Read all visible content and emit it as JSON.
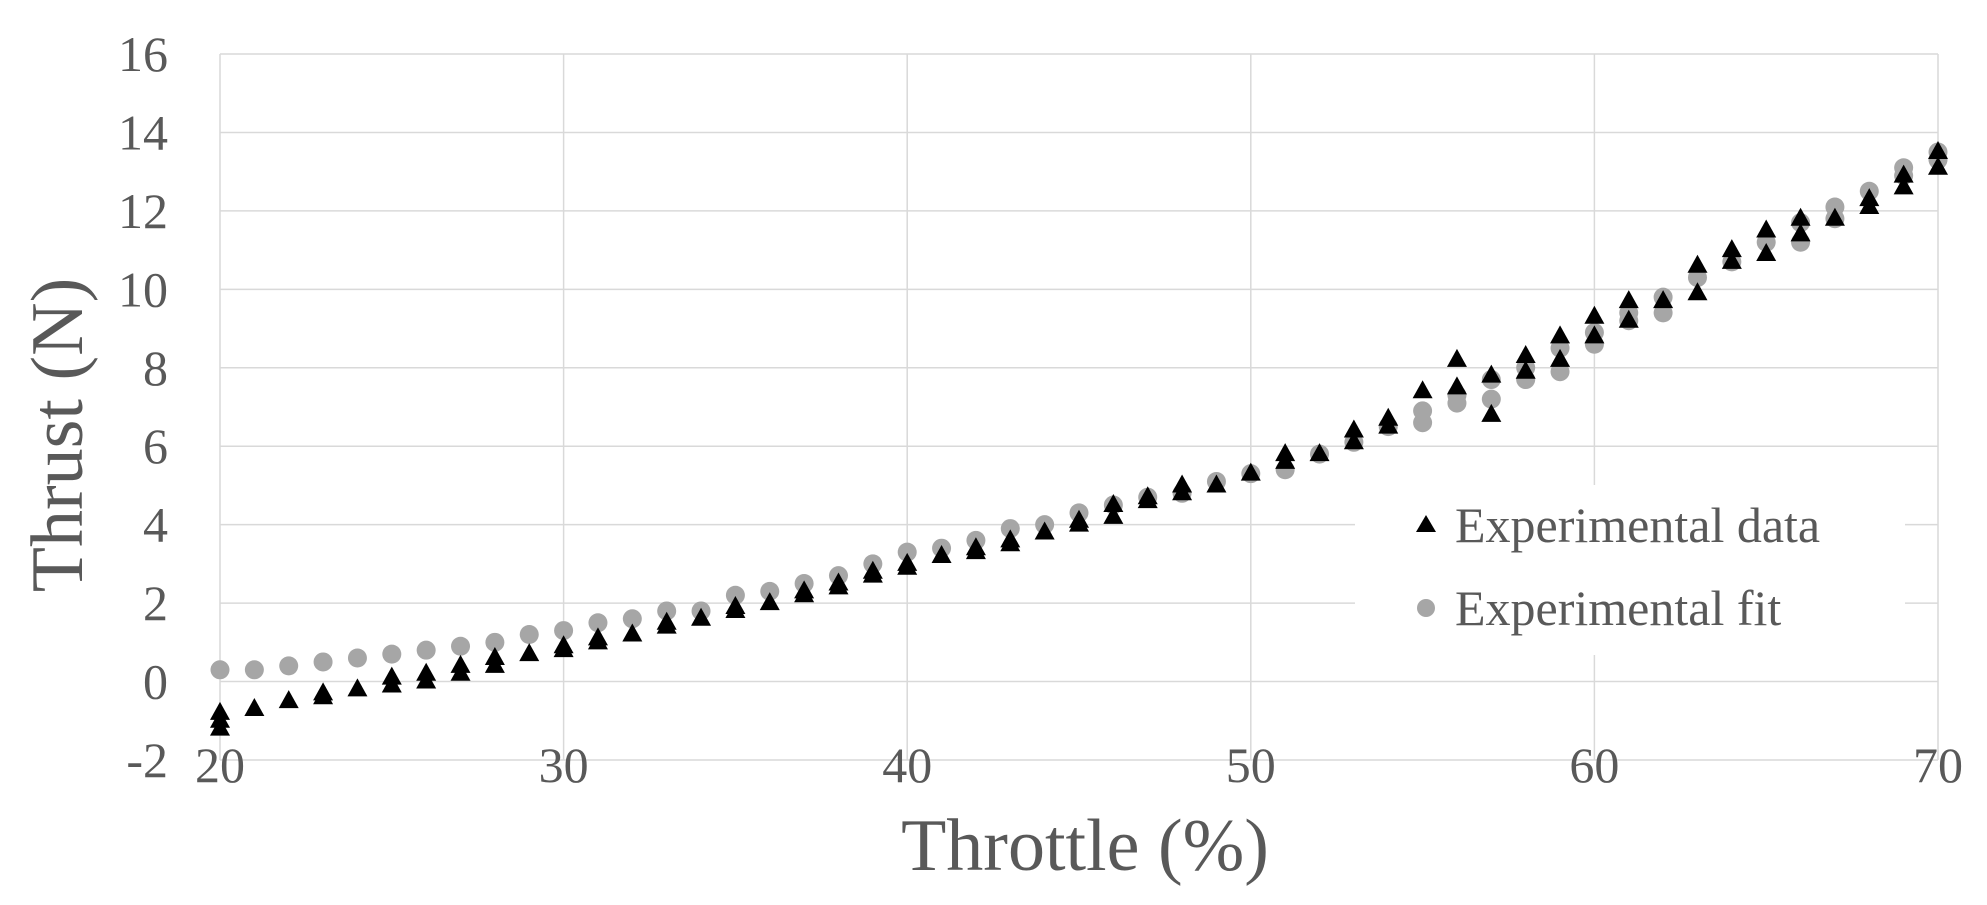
{
  "chart_data": {
    "type": "scatter",
    "xlabel": "Throttle (%)",
    "ylabel": "Thrust (N)",
    "xlim": [
      20,
      70
    ],
    "ylim": [
      -2,
      16
    ],
    "x_ticks": [
      20,
      30,
      40,
      50,
      60,
      70
    ],
    "y_ticks": [
      -2,
      0,
      2,
      4,
      6,
      8,
      10,
      12,
      14,
      16
    ],
    "x_tick_labels": [
      "20",
      "30",
      "40",
      "50",
      "60",
      "70"
    ],
    "y_tick_labels": [
      "-2",
      "0",
      "2",
      "4",
      "6",
      "8",
      "10",
      "12",
      "14",
      "16"
    ],
    "grid": true,
    "legend_position": "bottom-right",
    "series": [
      {
        "name": "Experimental data",
        "marker": "triangle",
        "color": "#000000",
        "points": [
          [
            20,
            -1.2
          ],
          [
            20,
            -1.0
          ],
          [
            20,
            -0.8
          ],
          [
            21,
            -0.7
          ],
          [
            22,
            -0.5
          ],
          [
            23,
            -0.4
          ],
          [
            23,
            -0.3
          ],
          [
            24,
            -0.2
          ],
          [
            25,
            -0.1
          ],
          [
            25,
            0.1
          ],
          [
            26,
            0.0
          ],
          [
            26,
            0.2
          ],
          [
            27,
            0.2
          ],
          [
            27,
            0.4
          ],
          [
            28,
            0.4
          ],
          [
            28,
            0.6
          ],
          [
            29,
            0.7
          ],
          [
            30,
            0.8
          ],
          [
            30,
            0.9
          ],
          [
            31,
            1.0
          ],
          [
            31,
            1.1
          ],
          [
            32,
            1.2
          ],
          [
            33,
            1.4
          ],
          [
            33,
            1.5
          ],
          [
            34,
            1.6
          ],
          [
            35,
            1.8
          ],
          [
            35,
            1.9
          ],
          [
            36,
            2.0
          ],
          [
            37,
            2.2
          ],
          [
            37,
            2.3
          ],
          [
            38,
            2.4
          ],
          [
            38,
            2.5
          ],
          [
            39,
            2.7
          ],
          [
            39,
            2.8
          ],
          [
            40,
            2.9
          ],
          [
            40,
            3.0
          ],
          [
            41,
            3.2
          ],
          [
            42,
            3.3
          ],
          [
            42,
            3.4
          ],
          [
            43,
            3.5
          ],
          [
            43,
            3.6
          ],
          [
            44,
            3.8
          ],
          [
            45,
            4.0
          ],
          [
            45,
            4.1
          ],
          [
            46,
            4.2
          ],
          [
            46,
            4.5
          ],
          [
            47,
            4.6
          ],
          [
            47,
            4.7
          ],
          [
            48,
            4.8
          ],
          [
            48,
            5.0
          ],
          [
            49,
            5.0
          ],
          [
            50,
            5.3
          ],
          [
            51,
            5.6
          ],
          [
            51,
            5.8
          ],
          [
            52,
            5.8
          ],
          [
            53,
            6.1
          ],
          [
            53,
            6.4
          ],
          [
            54,
            6.5
          ],
          [
            54,
            6.7
          ],
          [
            55,
            7.4
          ],
          [
            56,
            7.5
          ],
          [
            56,
            8.2
          ],
          [
            57,
            6.8
          ],
          [
            57,
            7.8
          ],
          [
            58,
            7.9
          ],
          [
            58,
            8.3
          ],
          [
            59,
            8.2
          ],
          [
            59,
            8.8
          ],
          [
            60,
            8.8
          ],
          [
            60,
            9.3
          ],
          [
            61,
            9.2
          ],
          [
            61,
            9.7
          ],
          [
            62,
            9.7
          ],
          [
            63,
            9.9
          ],
          [
            63,
            10.6
          ],
          [
            64,
            10.7
          ],
          [
            64,
            11.0
          ],
          [
            65,
            10.9
          ],
          [
            65,
            11.5
          ],
          [
            66,
            11.4
          ],
          [
            66,
            11.8
          ],
          [
            67,
            11.8
          ],
          [
            68,
            12.1
          ],
          [
            68,
            12.3
          ],
          [
            69,
            12.6
          ],
          [
            69,
            12.9
          ],
          [
            70,
            13.1
          ],
          [
            70,
            13.5
          ]
        ]
      },
      {
        "name": "Experimental fit",
        "marker": "circle",
        "color": "#a6a6a6",
        "points": [
          [
            20,
            0.3
          ],
          [
            21,
            0.3
          ],
          [
            22,
            0.4
          ],
          [
            23,
            0.5
          ],
          [
            24,
            0.6
          ],
          [
            25,
            0.7
          ],
          [
            26,
            0.8
          ],
          [
            27,
            0.9
          ],
          [
            28,
            1.0
          ],
          [
            29,
            1.2
          ],
          [
            30,
            1.3
          ],
          [
            31,
            1.5
          ],
          [
            32,
            1.6
          ],
          [
            33,
            1.8
          ],
          [
            34,
            1.8
          ],
          [
            35,
            2.2
          ],
          [
            36,
            2.3
          ],
          [
            37,
            2.5
          ],
          [
            38,
            2.7
          ],
          [
            39,
            3.0
          ],
          [
            40,
            3.3
          ],
          [
            41,
            3.4
          ],
          [
            42,
            3.6
          ],
          [
            43,
            3.9
          ],
          [
            44,
            4.0
          ],
          [
            45,
            4.3
          ],
          [
            46,
            4.5
          ],
          [
            47,
            4.7
          ],
          [
            48,
            4.8
          ],
          [
            49,
            5.1
          ],
          [
            50,
            5.3
          ],
          [
            51,
            5.4
          ],
          [
            52,
            5.8
          ],
          [
            53,
            6.1
          ],
          [
            54,
            6.5
          ],
          [
            55,
            6.6
          ],
          [
            55,
            6.9
          ],
          [
            56,
            7.1
          ],
          [
            56,
            7.3
          ],
          [
            57,
            7.2
          ],
          [
            57,
            7.7
          ],
          [
            58,
            7.7
          ],
          [
            58,
            8.0
          ],
          [
            59,
            7.9
          ],
          [
            59,
            8.5
          ],
          [
            60,
            8.6
          ],
          [
            60,
            8.9
          ],
          [
            61,
            9.2
          ],
          [
            61,
            9.4
          ],
          [
            62,
            9.4
          ],
          [
            62,
            9.8
          ],
          [
            63,
            10.3
          ],
          [
            64,
            10.7
          ],
          [
            65,
            11.2
          ],
          [
            66,
            11.2
          ],
          [
            66,
            11.7
          ],
          [
            67,
            11.8
          ],
          [
            67,
            12.1
          ],
          [
            68,
            12.5
          ],
          [
            69,
            12.9
          ],
          [
            69,
            13.1
          ],
          [
            70,
            13.3
          ],
          [
            70,
            13.5
          ]
        ]
      }
    ]
  }
}
